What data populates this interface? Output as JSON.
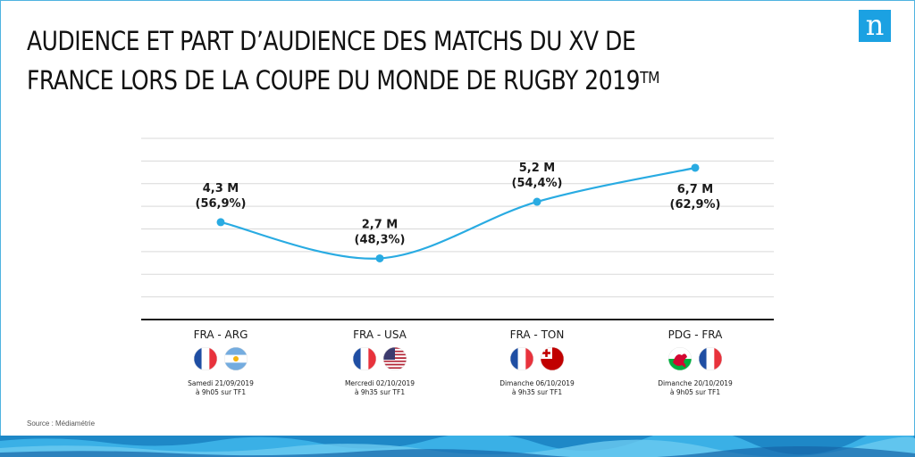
{
  "header": {
    "title": "AUDIENCE ET PART D’AUDIENCE DES MATCHS DU XV DE FRANCE LORS DE LA COUPE DU MONDE DE RUGBY 2019",
    "title_sup": "TM"
  },
  "logo": {
    "letter": "n",
    "color": "#1ba1e2"
  },
  "footer": {
    "source": "Source : Médiamétrie"
  },
  "colors": {
    "line": "#29abe2",
    "grid": "#d9d9d9",
    "axis": "#1a1a1a",
    "france_blue": "#1f4ea3",
    "france_red": "#e8323c"
  },
  "chart_data": {
    "type": "line",
    "categories": [
      "FRA - ARG",
      "FRA - USA",
      "FRA - TON",
      "PDG - FRA"
    ],
    "values": [
      4.3,
      2.7,
      5.2,
      6.7
    ],
    "data_labels": [
      "4,3 M",
      "2,7 M",
      "5,2 M",
      "6,7 M"
    ],
    "share_labels": [
      "(56,9%)",
      "(48,3%)",
      "(54,4%)",
      "(62,9%)"
    ],
    "dates": [
      "Samedi 21/09/2019",
      "Mercredi 02/10/2019",
      "Dimanche 06/10/2019",
      "Dimanche 20/10/2019"
    ],
    "times": [
      "à 9h05 sur TF1",
      "à 9h35 sur TF1",
      "à 9h35 sur TF1",
      "à 9h05 sur TF1"
    ],
    "flags": [
      [
        "france-flag",
        "argentina-flag"
      ],
      [
        "france-flag",
        "usa-flag"
      ],
      [
        "france-flag",
        "tonga-flag"
      ],
      [
        "wales-flag",
        "france-flag"
      ]
    ],
    "ylim": [
      0,
      8
    ],
    "grid": true,
    "xlabel": "",
    "ylabel": ""
  }
}
